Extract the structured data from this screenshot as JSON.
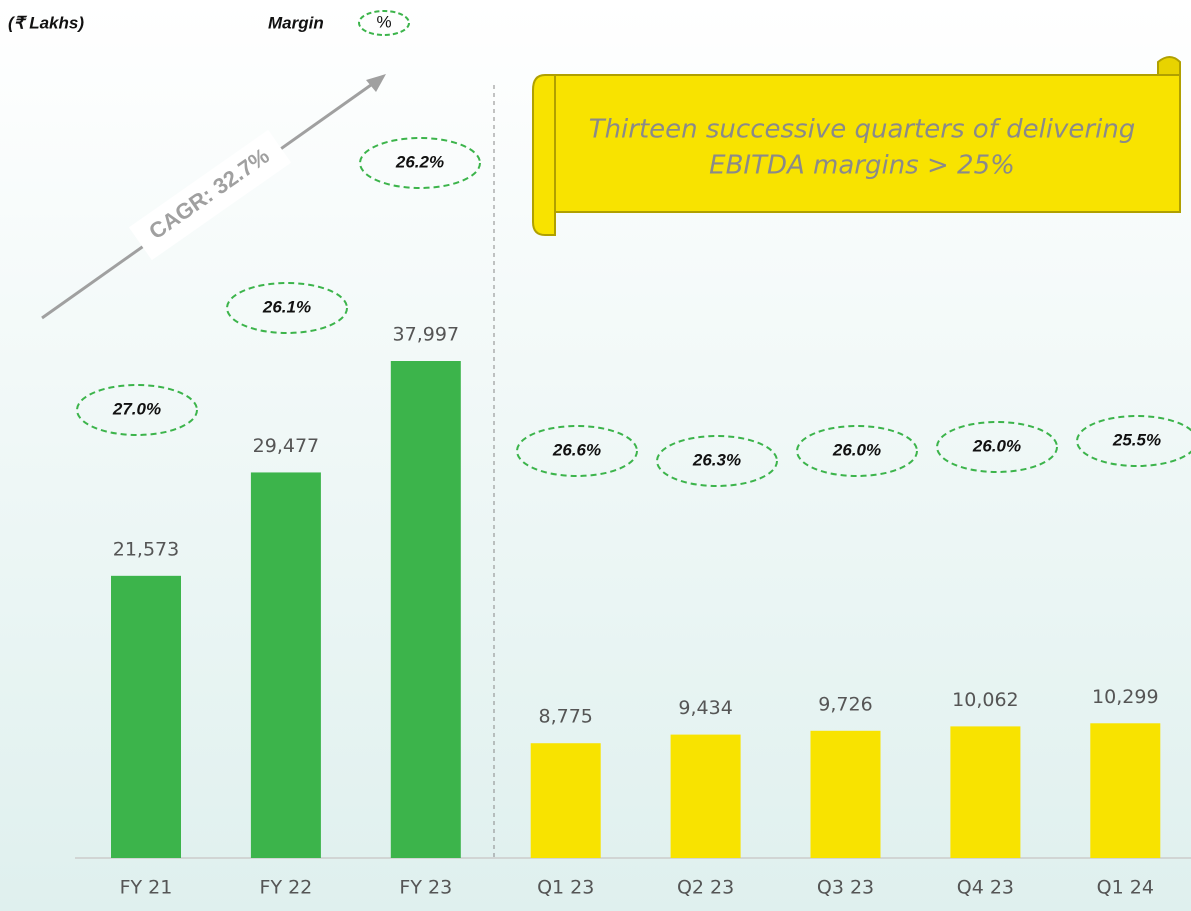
{
  "chart_data": {
    "type": "bar",
    "unit_label": "(₹ Lakhs)",
    "legend_label": "Margin",
    "legend_symbol": "%",
    "annotation": "CAGR: 32.7%",
    "callout": [
      "Thirteen successive quarters of delivering",
      "EBITDA margins > 25%"
    ],
    "categories": [
      "FY 21",
      "FY 22",
      "FY 23",
      "Q1 23",
      "Q2 23",
      "Q3 23",
      "Q4 23",
      "Q1 24"
    ],
    "values": [
      21573,
      29477,
      37997,
      8775,
      9434,
      9726,
      10062,
      10299
    ],
    "value_labels": [
      "21,573",
      "29,477",
      "37,997",
      "8,775",
      "9,434",
      "9,726",
      "10,062",
      "10,299"
    ],
    "colors": [
      "#3cb44b",
      "#3cb44b",
      "#3cb44b",
      "#f8e300",
      "#f8e300",
      "#f8e300",
      "#f8e300",
      "#f8e300"
    ],
    "margin_labels": [
      "27.0%",
      "26.1%",
      "26.2%",
      "26.6%",
      "26.3%",
      "26.0%",
      "26.0%",
      "25.5%"
    ]
  }
}
